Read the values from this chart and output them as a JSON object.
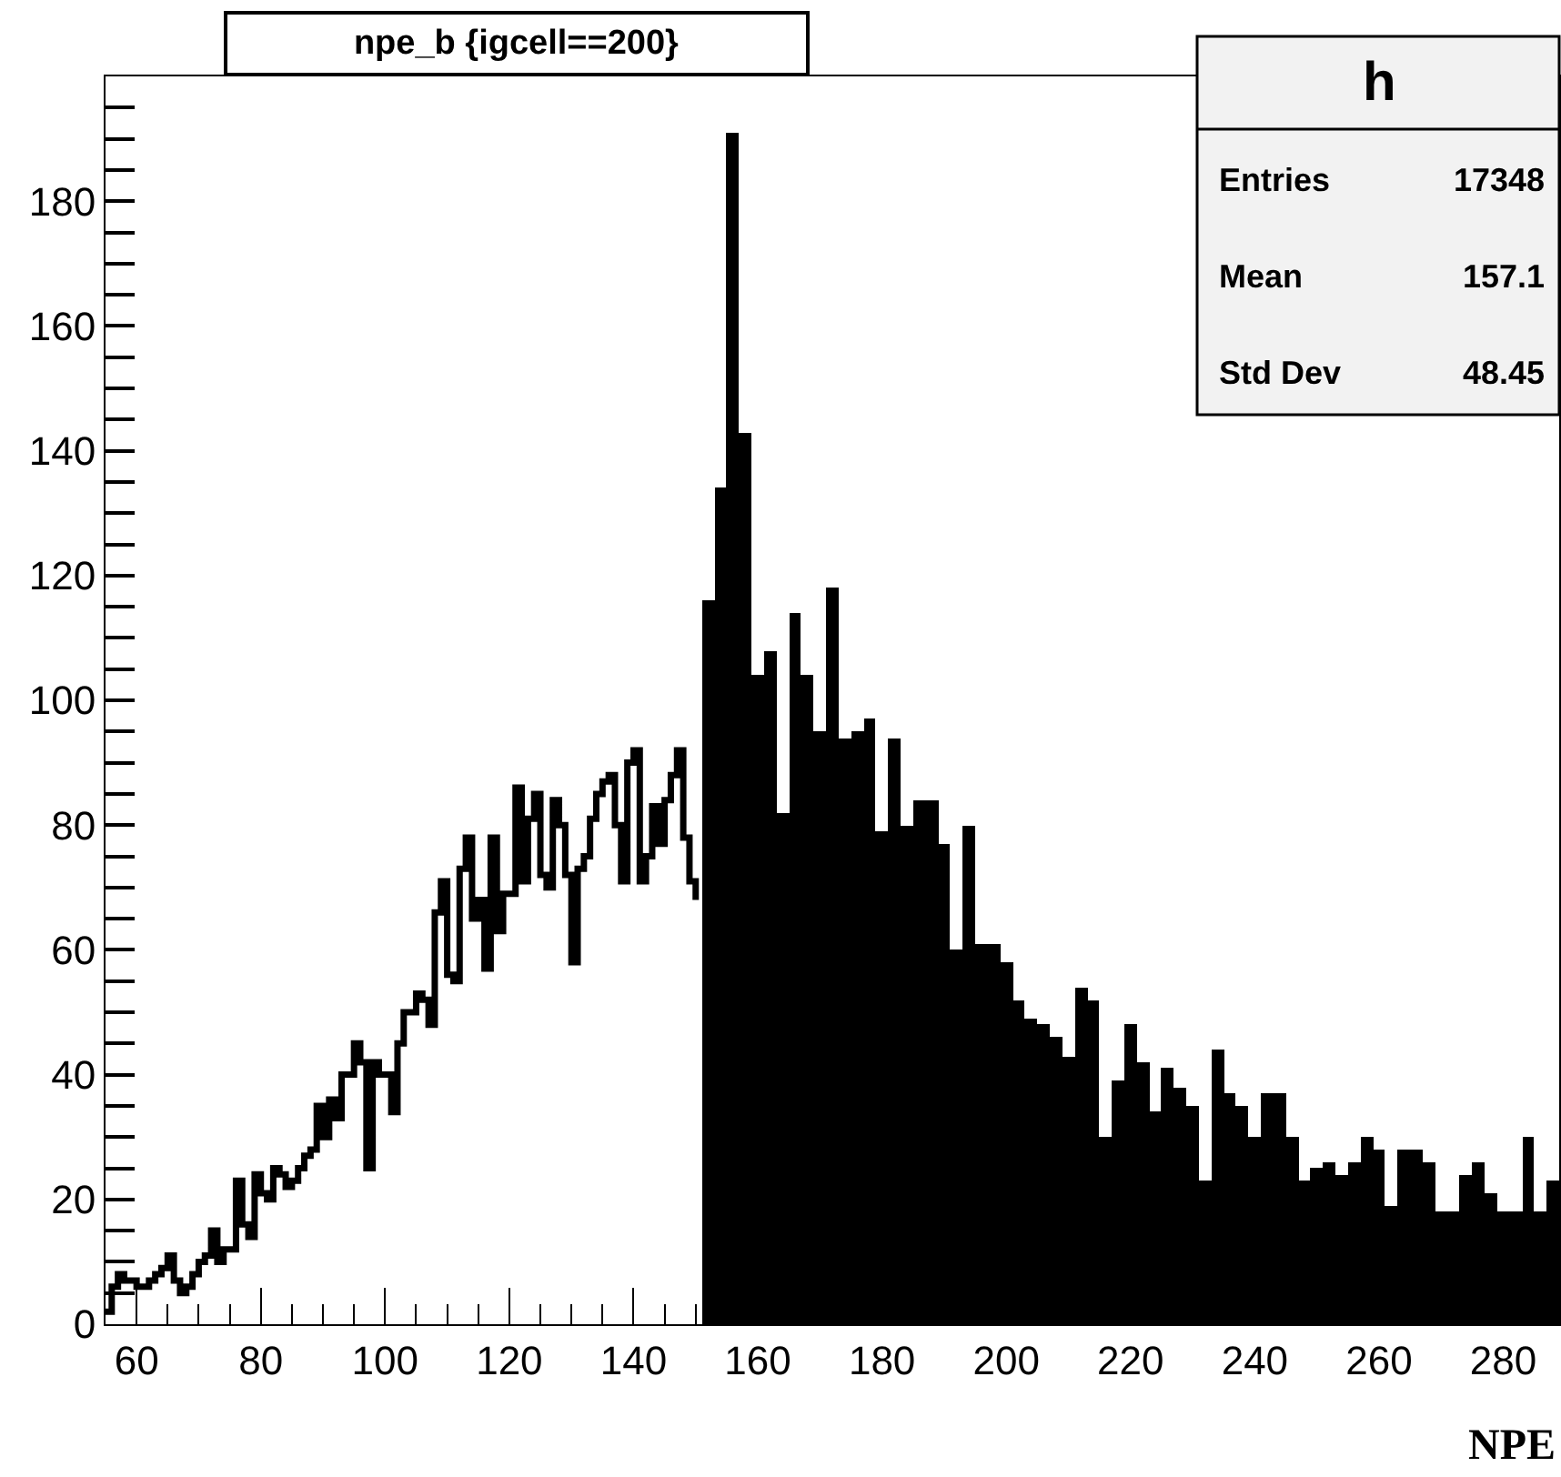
{
  "chart_data": {
    "type": "histogram",
    "title": "npe_b {igcell==200}",
    "xlabel": "NPE",
    "annotations": [
      "h",
      "Entries",
      "17348",
      "Mean",
      "157.1",
      "Std Dev",
      "48.45"
    ],
    "bins": [
      151,
      153,
      155,
      157,
      159,
      161,
      163,
      165,
      167,
      169,
      171,
      173,
      175,
      177,
      179,
      181,
      183,
      185,
      187,
      189,
      191,
      193,
      195,
      197,
      199,
      201,
      203,
      205,
      207,
      209,
      211,
      213,
      215,
      217,
      219,
      221,
      223,
      225,
      227,
      229,
      231,
      233,
      235,
      237,
      239,
      241,
      243,
      245,
      247,
      249,
      251,
      253,
      255,
      257,
      259,
      261,
      263,
      265,
      267,
      269,
      271,
      273,
      275,
      277,
      279,
      281,
      283,
      285,
      287,
      289
    ],
    "series": [
      {
        "type": "step",
        "color": "#000000",
        "x": [
          55,
          56,
          57,
          58,
          59,
          60,
          61,
          62,
          63,
          64,
          65,
          66,
          67,
          68,
          69,
          70,
          71,
          72,
          73,
          74,
          75,
          76,
          77,
          78,
          79,
          80,
          81,
          82,
          83,
          84,
          85,
          86,
          87,
          88,
          89,
          90,
          91,
          92,
          93,
          94,
          95,
          96,
          97,
          98,
          99,
          100,
          101,
          102,
          103,
          104,
          105,
          106,
          107,
          108,
          109,
          110,
          111,
          112,
          113,
          114,
          115,
          116,
          117,
          118,
          119,
          120,
          121,
          122,
          123,
          124,
          125,
          126,
          127,
          128,
          129,
          130,
          131,
          132,
          133,
          134,
          135,
          136,
          137,
          138,
          139,
          140,
          141,
          142,
          143,
          144,
          145,
          146,
          147,
          148,
          149,
          150
        ],
        "values": [
          2,
          6,
          8,
          7,
          7,
          6,
          6,
          7,
          8,
          9,
          11,
          7,
          5,
          6,
          8,
          10,
          11,
          15,
          10,
          12,
          12,
          23,
          16,
          14,
          24,
          21,
          20,
          25,
          24,
          22,
          23,
          25,
          27,
          28,
          35,
          30,
          36,
          33,
          40,
          40,
          45,
          42,
          25,
          42,
          40,
          40,
          34,
          45,
          50,
          50,
          53,
          52,
          48,
          66,
          71,
          56,
          55,
          73,
          78,
          65,
          68,
          57,
          78,
          63,
          69,
          69,
          86,
          71,
          81,
          85,
          72,
          70,
          84,
          80,
          72,
          58,
          73,
          75,
          81,
          85,
          87,
          88,
          80,
          71,
          90,
          92,
          71,
          75,
          83,
          77,
          84,
          88,
          92,
          78,
          71,
          68
        ]
      },
      {
        "type": "histogram",
        "color": "#000000",
        "values": [
          116,
          134,
          191,
          143,
          104,
          108,
          82,
          114,
          104,
          95,
          118,
          94,
          95,
          97,
          79,
          94,
          80,
          84,
          84,
          77,
          60,
          80,
          61,
          61,
          58,
          52,
          49,
          48,
          46,
          43,
          54,
          52,
          30,
          39,
          48,
          42,
          34,
          41,
          38,
          35,
          23,
          44,
          37,
          35,
          30,
          37,
          37,
          30,
          23,
          25,
          26,
          24,
          26,
          30,
          28,
          19,
          28,
          28,
          26,
          18,
          18,
          24,
          26,
          21,
          18,
          18,
          30,
          18,
          23
        ]
      }
    ],
    "xlim": [
      55,
      289
    ],
    "ylim": [
      0,
      200
    ],
    "xticks": [
      60,
      80,
      100,
      120,
      140,
      160,
      180,
      200,
      220,
      240,
      260,
      280
    ],
    "yticks": [
      0,
      {
        "value": 5,
        "label": null
      },
      {
        "value": 10,
        "label": null
      },
      {
        "value": 15,
        "label": null
      },
      20,
      {
        "value": 25,
        "label": null
      },
      {
        "value": 30,
        "label": null
      },
      {
        "value": 35,
        "label": null
      },
      40,
      {
        "value": 45,
        "label": null
      },
      {
        "value": 50,
        "label": null
      },
      {
        "value": 55,
        "label": null
      },
      60,
      {
        "value": 65,
        "label": null
      },
      {
        "value": 70,
        "label": null
      },
      {
        "value": 75,
        "label": null
      },
      80,
      {
        "value": 85,
        "label": null
      },
      {
        "value": 90,
        "label": null
      },
      {
        "value": 95,
        "label": null
      },
      100,
      {
        "value": 105,
        "label": null
      },
      {
        "value": 110,
        "label": null
      },
      {
        "value": 115,
        "label": null
      },
      120,
      {
        "value": 125,
        "label": null
      },
      {
        "value": 130,
        "label": null
      },
      {
        "value": 135,
        "label": null
      },
      140,
      {
        "value": 145,
        "label": null
      },
      {
        "value": 150,
        "label": null
      },
      {
        "value": 155,
        "label": null
      },
      160,
      {
        "value": 165,
        "label": null
      },
      {
        "value": 170,
        "label": null
      },
      {
        "value": 175,
        "label": null
      },
      180,
      {
        "value": 185,
        "label": null
      },
      {
        "value": 190,
        "label": null
      },
      {
        "value": 195,
        "label": null
      }
    ]
  }
}
